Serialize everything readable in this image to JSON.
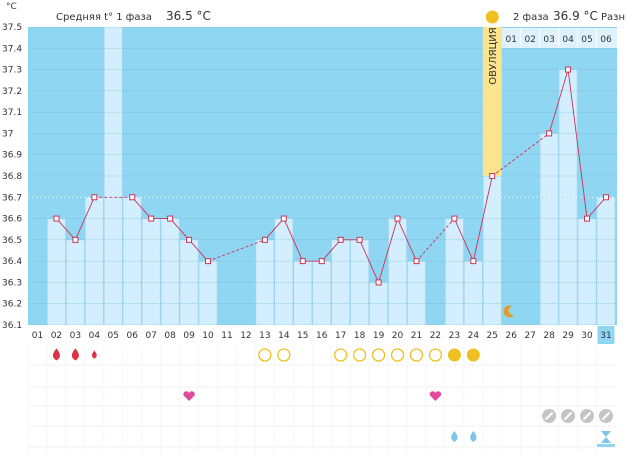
{
  "chart_data": {
    "type": "line",
    "unit": "°C",
    "yticks": [
      "37.5",
      "37.4",
      "37.3",
      "37.2",
      "37.1",
      "37",
      "36.9",
      "36.8",
      "36.7",
      "36.6",
      "36.5",
      "36.4",
      "36.3",
      "36.2",
      "36.1"
    ],
    "ylim": [
      36.1,
      37.5
    ],
    "days": [
      "01",
      "02",
      "03",
      "04",
      "05",
      "06",
      "07",
      "08",
      "09",
      "10",
      "11",
      "12",
      "13",
      "14",
      "15",
      "16",
      "17",
      "18",
      "19",
      "20",
      "21",
      "22",
      "23",
      "24",
      "25",
      "26",
      "27",
      "28",
      "29",
      "30",
      "31"
    ],
    "temps": [
      null,
      36.6,
      36.5,
      36.7,
      null,
      36.7,
      36.6,
      36.6,
      36.5,
      36.4,
      null,
      null,
      36.5,
      36.6,
      36.4,
      36.4,
      36.5,
      36.5,
      36.3,
      36.6,
      36.4,
      null,
      36.6,
      36.4,
      36.8,
      null,
      null,
      37.0,
      37.3,
      36.6,
      36.7
    ],
    "bar_days": [
      2,
      3,
      4,
      5,
      6,
      7,
      8,
      9,
      10,
      13,
      14,
      15,
      16,
      17,
      18,
      19,
      20,
      21,
      23,
      24,
      25,
      28,
      29,
      30,
      31
    ],
    "ovulation_day": 25,
    "phase1_label": "Средняя t° 1 фаза",
    "phase1_value": "36.5 °C",
    "phase2_label": "2 фаза",
    "phase2_value": "36.9 °C",
    "diff_label": "Разни",
    "ovulation_label": "ОВУЛЯЦИЯ",
    "phase2_days": [
      "01",
      "02",
      "03",
      "04",
      "05",
      "06"
    ],
    "highlight_day": 31
  },
  "markers": {
    "menstruation": [
      {
        "day": 2,
        "size": "large"
      },
      {
        "day": 3,
        "size": "large"
      },
      {
        "day": 4,
        "size": "small"
      }
    ],
    "mucus_circles": [
      13,
      14,
      17,
      18,
      19,
      20,
      21,
      22
    ],
    "mucus_filled": [
      23,
      24
    ],
    "hearts": [
      9,
      22
    ],
    "pills": [
      28,
      29,
      30,
      31
    ],
    "drops_blue": [
      23,
      24
    ],
    "hourglass": [
      31
    ],
    "moon": [
      26
    ],
    "sun": [
      25
    ]
  },
  "colors": {
    "plot_bg": "#8fd6f2",
    "bar_fill": "#d3efff",
    "bar_edge": "#a9d7f0",
    "ovulation": "#fbe48e",
    "line": "#cc3355",
    "red_drop": "#dd3344",
    "circle": "#f0c020",
    "heart": "#e04a9c",
    "blue_drop": "#7ec3e8",
    "pill": "#c4c4c4"
  }
}
